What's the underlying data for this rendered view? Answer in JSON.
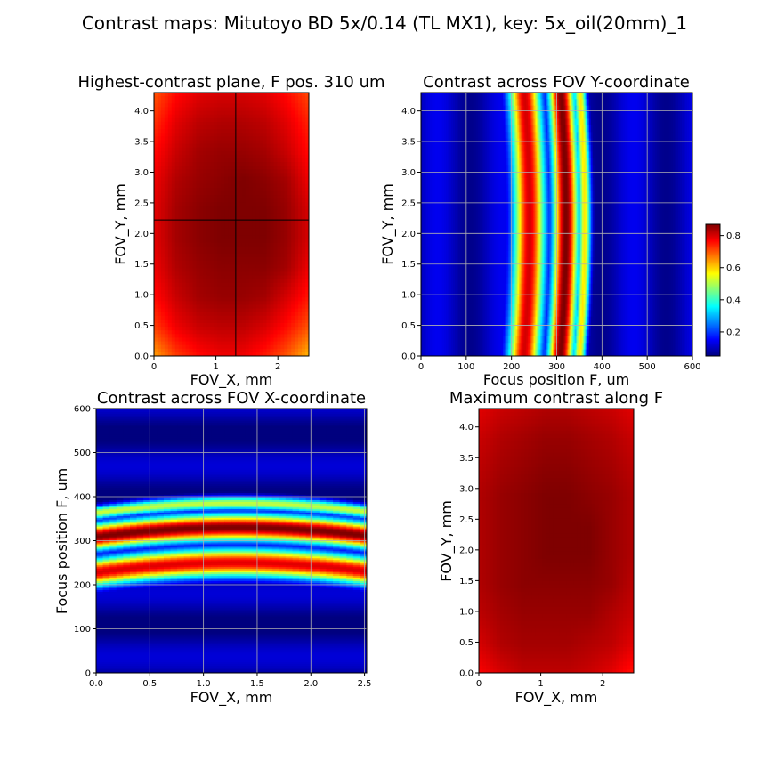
{
  "figure": {
    "title": "Contrast maps: Mitutoyo BD 5x/0.14 (TL MX1), key: 5x_oil(20mm)_1"
  },
  "colormap": {
    "name": "jet",
    "stops": [
      "#00007f",
      "#0000ff",
      "#007fff",
      "#00ffff",
      "#7fff7f",
      "#ffff00",
      "#ff7f00",
      "#ff0000",
      "#7f0000"
    ],
    "range": [
      0.05,
      0.87
    ],
    "ticks": [
      "0.2",
      "0.4",
      "0.6",
      "0.8"
    ],
    "tick_values": [
      0.2,
      0.4,
      0.6,
      0.8
    ]
  },
  "chart_data": [
    {
      "id": "best-plane",
      "type": "heatmap",
      "title": "Highest-contrast plane, F pos. 310 um",
      "xlabel": "FOV_X, mm",
      "ylabel": "FOV_Y, mm",
      "xlim": [
        0,
        2.5
      ],
      "ylim": [
        0,
        4.3
      ],
      "xticks": [
        0,
        1,
        2
      ],
      "xticklabels": [
        "0",
        "1",
        "2"
      ],
      "yticks": [
        0,
        0.5,
        1,
        1.5,
        2,
        2.5,
        3,
        3.5,
        4
      ],
      "yticklabels": [
        "0.0",
        "0.5",
        "1.0",
        "1.5",
        "2.0",
        "2.5",
        "3.0",
        "3.5",
        "4.0"
      ],
      "grid": false,
      "crosshair": {
        "x": 1.32,
        "y": 2.22
      },
      "values": [
        [
          0.7,
          0.76,
          0.79,
          0.8,
          0.8,
          0.79,
          0.76,
          0.71
        ],
        [
          0.73,
          0.79,
          0.82,
          0.83,
          0.83,
          0.82,
          0.79,
          0.74
        ],
        [
          0.76,
          0.81,
          0.84,
          0.85,
          0.85,
          0.84,
          0.81,
          0.76
        ],
        [
          0.78,
          0.83,
          0.85,
          0.86,
          0.87,
          0.86,
          0.84,
          0.78
        ],
        [
          0.79,
          0.84,
          0.86,
          0.87,
          0.87,
          0.87,
          0.85,
          0.8
        ],
        [
          0.79,
          0.84,
          0.86,
          0.87,
          0.87,
          0.87,
          0.85,
          0.8
        ],
        [
          0.78,
          0.83,
          0.85,
          0.86,
          0.86,
          0.86,
          0.84,
          0.78
        ],
        [
          0.76,
          0.81,
          0.84,
          0.85,
          0.85,
          0.84,
          0.8,
          0.75
        ],
        [
          0.72,
          0.78,
          0.81,
          0.82,
          0.82,
          0.8,
          0.76,
          0.7
        ],
        [
          0.64,
          0.72,
          0.76,
          0.78,
          0.78,
          0.75,
          0.7,
          0.62
        ]
      ]
    },
    {
      "id": "contrast-y",
      "type": "heatmap",
      "title": "Contrast across FOV Y-coordinate",
      "xlabel": "Focus position F, um",
      "ylabel": "FOV_Y, mm",
      "xlim": [
        0,
        600
      ],
      "ylim": [
        0,
        4.3
      ],
      "xticks": [
        0,
        100,
        200,
        300,
        400,
        500,
        600
      ],
      "xticklabels": [
        "0",
        "100",
        "200",
        "300",
        "400",
        "500",
        "600"
      ],
      "yticks": [
        0,
        0.5,
        1,
        1.5,
        2,
        2.5,
        3,
        3.5,
        4
      ],
      "yticklabels": [
        "0.0",
        "0.5",
        "1.0",
        "1.5",
        "2.0",
        "2.5",
        "3.0",
        "3.5",
        "4.0"
      ],
      "grid": true,
      "band": {
        "peaks_um": [
          {
            "center": 240,
            "width": 35,
            "amp": 0.78
          },
          {
            "center": 320,
            "width": 28,
            "amp": 0.84
          },
          {
            "center": 362,
            "width": 14,
            "amp": 0.55
          }
        ],
        "center_axis": "x",
        "bow_center": 2.2,
        "bow_amplitude": 12,
        "bow_half_range": 2.2,
        "background": 0.1
      }
    },
    {
      "id": "contrast-x",
      "type": "heatmap",
      "title": "Contrast across FOV X-coordinate",
      "xlabel": "FOV_X, mm",
      "ylabel": "Focus position F, um",
      "xlim": [
        0,
        2.52
      ],
      "ylim": [
        0,
        600
      ],
      "xticks": [
        0,
        0.5,
        1,
        1.5,
        2,
        2.5
      ],
      "xticklabels": [
        "0.0",
        "0.5",
        "1.0",
        "1.5",
        "2.0",
        "2.5"
      ],
      "yticks": [
        0,
        100,
        200,
        300,
        400,
        500,
        600
      ],
      "yticklabels": [
        "0",
        "100",
        "200",
        "300",
        "400",
        "500",
        "600"
      ],
      "grid": true,
      "band": {
        "peaks_um": [
          {
            "center": 250,
            "width": 32,
            "amp": 0.78
          },
          {
            "center": 330,
            "width": 30,
            "amp": 0.84
          },
          {
            "center": 385,
            "width": 16,
            "amp": 0.5
          }
        ],
        "center_axis": "y",
        "bow_center": 1.3,
        "bow_amplitude": 22,
        "bow_half_range": 1.3,
        "background": 0.08
      }
    },
    {
      "id": "max-contrast",
      "type": "heatmap",
      "title": "Maximum contrast along F",
      "xlabel": "FOV_X, mm",
      "ylabel": "FOV_Y, mm",
      "xlim": [
        0,
        2.5
      ],
      "ylim": [
        0,
        4.3
      ],
      "xticks": [
        0,
        1,
        2
      ],
      "xticklabels": [
        "0",
        "1",
        "2"
      ],
      "yticks": [
        0,
        0.5,
        1,
        1.5,
        2,
        2.5,
        3,
        3.5,
        4
      ],
      "yticklabels": [
        "0.0",
        "0.5",
        "1.0",
        "1.5",
        "2.0",
        "2.5",
        "3.0",
        "3.5",
        "4.0"
      ],
      "grid": false,
      "values": [
        [
          0.79,
          0.81,
          0.82,
          0.83,
          0.83,
          0.82,
          0.81,
          0.79
        ],
        [
          0.81,
          0.83,
          0.84,
          0.85,
          0.85,
          0.84,
          0.83,
          0.81
        ],
        [
          0.82,
          0.84,
          0.85,
          0.86,
          0.86,
          0.85,
          0.84,
          0.82
        ],
        [
          0.83,
          0.85,
          0.86,
          0.87,
          0.87,
          0.86,
          0.85,
          0.83
        ],
        [
          0.83,
          0.85,
          0.86,
          0.87,
          0.87,
          0.87,
          0.85,
          0.83
        ],
        [
          0.83,
          0.85,
          0.86,
          0.87,
          0.87,
          0.87,
          0.85,
          0.83
        ],
        [
          0.83,
          0.85,
          0.86,
          0.86,
          0.86,
          0.86,
          0.85,
          0.82
        ],
        [
          0.82,
          0.84,
          0.85,
          0.85,
          0.85,
          0.85,
          0.83,
          0.81
        ],
        [
          0.8,
          0.83,
          0.84,
          0.84,
          0.84,
          0.83,
          0.82,
          0.79
        ],
        [
          0.77,
          0.8,
          0.82,
          0.82,
          0.82,
          0.81,
          0.79,
          0.75
        ]
      ]
    }
  ]
}
